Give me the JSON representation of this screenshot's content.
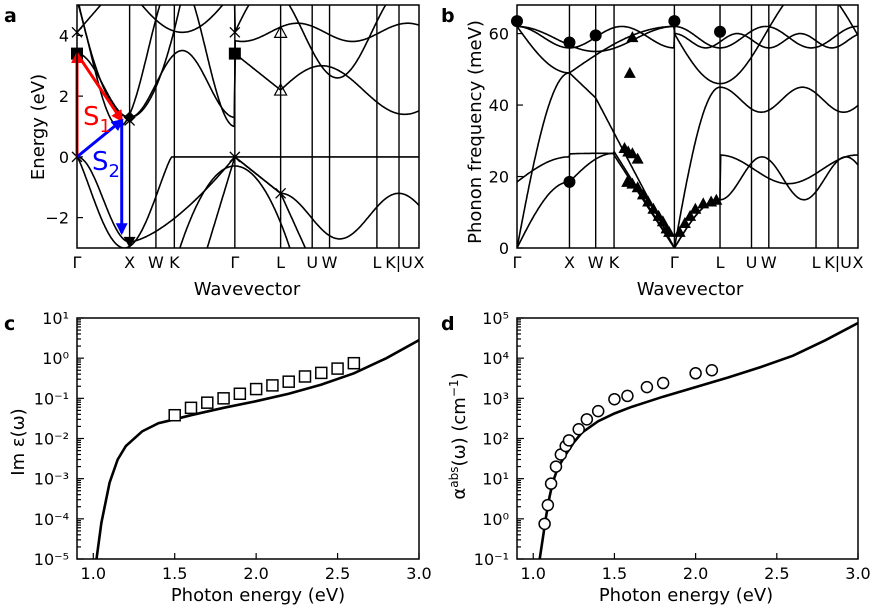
{
  "chart_data": [
    {
      "panel": "a",
      "type": "line",
      "xlabel": "Wavevector",
      "ylabel": "Energy (eV)",
      "ylim": [
        -3,
        5
      ],
      "yticks": [
        -2,
        0,
        2,
        4
      ],
      "kpoints": [
        "Γ",
        "X",
        "W",
        "K",
        "Γ",
        "L",
        "U",
        "W",
        "L",
        "K|U",
        "X"
      ],
      "kpositions": [
        0,
        1,
        1.5,
        1.85,
        3.0,
        3.87,
        4.47,
        4.8,
        5.7,
        6.12,
        6.5
      ],
      "arrows": [
        {
          "label": "S",
          "sub": "1",
          "color": "#ff0000",
          "from": [
            0,
            0
          ],
          "via": [
            0,
            3.4
          ],
          "to": [
            0.85,
            1.2
          ]
        },
        {
          "label": "S",
          "sub": "2",
          "color": "#0000ff",
          "from": [
            0,
            0
          ],
          "via": [
            0.85,
            1.2
          ],
          "to": [
            0.85,
            -2.5
          ]
        }
      ],
      "markers": [
        {
          "shape": "square",
          "points": [
            [
              0,
              3.4
            ],
            [
              3.0,
              3.4
            ]
          ]
        },
        {
          "shape": "cross",
          "points": [
            [
              0,
              4.1
            ],
            [
              0,
              0
            ],
            [
              3.0,
              0
            ],
            [
              3.87,
              -1.2
            ],
            [
              1.0,
              1.2
            ],
            [
              3.0,
              4.1
            ]
          ]
        },
        {
          "shape": "triangle-open",
          "points": [
            [
              3.87,
              4.1
            ],
            [
              3.87,
              2.2
            ]
          ]
        },
        {
          "shape": "diamond",
          "points": [
            [
              1.0,
              1.3
            ]
          ]
        },
        {
          "shape": "triangle-down",
          "points": [
            [
              1.0,
              -2.8
            ]
          ]
        }
      ]
    },
    {
      "panel": "b",
      "type": "line",
      "xlabel": "Wavevector",
      "ylabel": "Phonon frequency (meV)",
      "ylim": [
        0,
        68
      ],
      "yticks": [
        0,
        20,
        40,
        60
      ],
      "kpoints": [
        "Γ",
        "X",
        "W",
        "K",
        "Γ",
        "L",
        "U",
        "W",
        "L",
        "K|U",
        "X"
      ],
      "kpositions": [
        0,
        1,
        1.5,
        1.85,
        3.0,
        3.87,
        4.47,
        4.8,
        5.7,
        6.12,
        6.5
      ],
      "markers": [
        {
          "shape": "circle",
          "points": [
            [
              0,
              63.5
            ],
            [
              1,
              57.5
            ],
            [
              1.5,
              59.5
            ],
            [
              3.0,
              63.5
            ],
            [
              3.87,
              60.5
            ],
            [
              1,
              18.5
            ]
          ]
        },
        {
          "shape": "triangle",
          "points": [
            [
              2.05,
              28
            ],
            [
              2.12,
              27
            ],
            [
              2.2,
              26.5
            ],
            [
              2.3,
              25
            ],
            [
              2.1,
              18.5
            ],
            [
              2.2,
              18
            ],
            [
              2.3,
              17
            ],
            [
              2.4,
              15
            ],
            [
              2.5,
              13
            ],
            [
              2.6,
              11
            ],
            [
              2.7,
              9
            ],
            [
              2.78,
              7.5
            ],
            [
              2.85,
              5.5
            ],
            [
              2.9,
              4.5
            ],
            [
              3.1,
              4.5
            ],
            [
              3.2,
              7
            ],
            [
              3.3,
              9
            ],
            [
              3.4,
              11
            ],
            [
              3.55,
              12.5
            ],
            [
              3.7,
              13
            ],
            [
              3.8,
              13.5
            ],
            [
              2.15,
              49
            ],
            [
              2.2,
              59
            ]
          ]
        }
      ]
    },
    {
      "panel": "c",
      "type": "line",
      "xlabel": "Photon energy (eV)",
      "ylabel": "Im ε(ω)",
      "xlim": [
        0.9,
        3.0
      ],
      "ylim_log10": [
        -5,
        1
      ],
      "xticks": [
        "1.0",
        "1.5",
        "2.0",
        "2.5",
        "3.0"
      ],
      "yticks": [
        "10⁻⁵",
        "10⁻⁴",
        "10⁻³",
        "10⁻²",
        "10⁻¹",
        "10⁰",
        "10¹"
      ],
      "series": [
        {
          "style": "line",
          "x": [
            1.02,
            1.05,
            1.1,
            1.15,
            1.2,
            1.3,
            1.4,
            1.5,
            1.6,
            1.8,
            2.0,
            2.2,
            2.4,
            2.6,
            2.8,
            3.0
          ],
          "y": [
            1e-05,
            8e-05,
            0.0008,
            0.003,
            0.0065,
            0.015,
            0.024,
            0.03,
            0.038,
            0.058,
            0.085,
            0.13,
            0.22,
            0.42,
            1.0,
            2.8
          ]
        },
        {
          "style": "open-square",
          "x": [
            1.5,
            1.6,
            1.7,
            1.8,
            1.9,
            2.0,
            2.1,
            2.2,
            2.3,
            2.4,
            2.5,
            2.6
          ],
          "y": [
            0.038,
            0.058,
            0.078,
            0.1,
            0.13,
            0.17,
            0.21,
            0.26,
            0.35,
            0.43,
            0.55,
            0.75
          ]
        }
      ]
    },
    {
      "panel": "d",
      "type": "line",
      "xlabel": "Photon energy (eV)",
      "ylabel": "α",
      "ylabel_sup": "abs",
      "ylabel_rest": "(ω) (cm",
      "ylabel_unit_sup": "−1",
      "ylabel_close": ")",
      "xlim": [
        0.9,
        3.0
      ],
      "ylim_log10": [
        -1,
        5
      ],
      "xticks": [
        "1.0",
        "1.5",
        "2.0",
        "2.5",
        "3.0"
      ],
      "yticks": [
        "10⁻¹",
        "10⁰",
        "10¹",
        "10²",
        "10³",
        "10⁴",
        "10⁵"
      ],
      "series": [
        {
          "style": "line",
          "x": [
            1.04,
            1.06,
            1.08,
            1.1,
            1.12,
            1.15,
            1.2,
            1.25,
            1.3,
            1.4,
            1.5,
            1.6,
            1.8,
            2.0,
            2.2,
            2.4,
            2.6,
            2.8,
            3.0
          ],
          "y": [
            0.1,
            0.35,
            1.2,
            3.5,
            8,
            18,
            40,
            80,
            140,
            270,
            420,
            600,
            1100,
            1900,
            3300,
            6000,
            11500,
            28000,
            75000
          ]
        },
        {
          "style": "open-circle",
          "x": [
            1.07,
            1.09,
            1.11,
            1.14,
            1.17,
            1.2,
            1.22,
            1.28,
            1.33,
            1.4,
            1.5,
            1.58,
            1.7,
            1.8,
            2.0,
            2.1
          ],
          "y": [
            0.75,
            2.2,
            7.5,
            20,
            40,
            65,
            90,
            170,
            300,
            480,
            950,
            1150,
            1900,
            2400,
            4200,
            5000
          ]
        }
      ]
    }
  ]
}
